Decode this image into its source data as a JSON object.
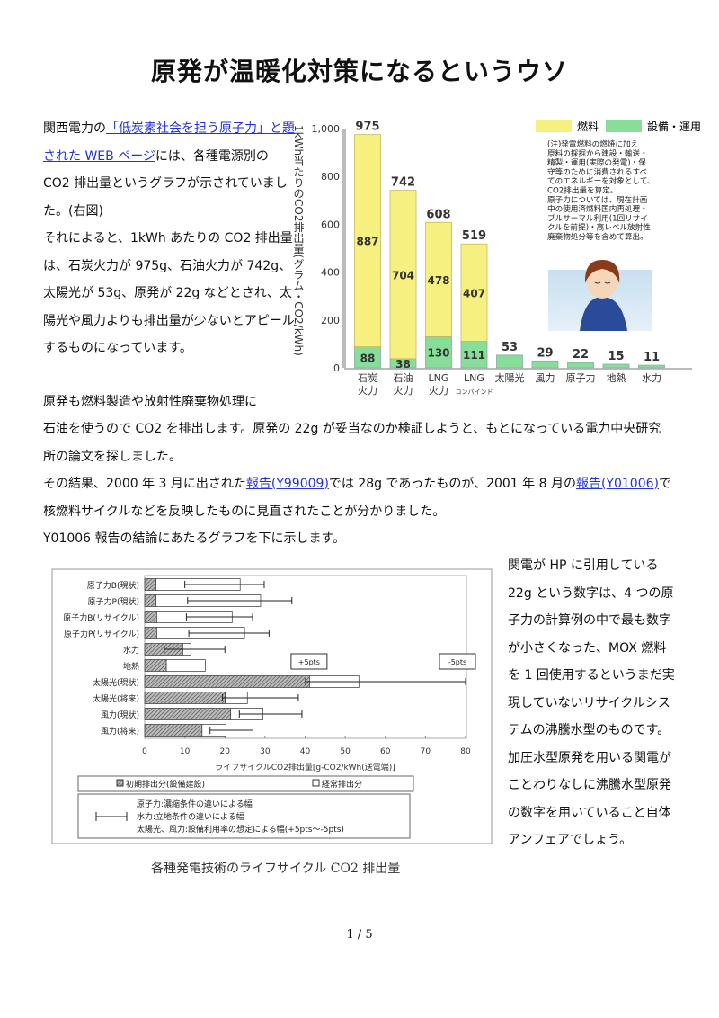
{
  "title": "原発が温暖化対策になるというウソ",
  "p1": {
    "pre": "関西電力の",
    "link": "「低炭素社会を担う原子力」と題された WEB ページ",
    "post": "には、各種電源別の CO2 排出量というグラフが示されていました。(右図)",
    "second": "それによると、1kWh あたりの CO2 排出量は、石炭火力が 975g、石油火力が 742g、太陽光が 53g、原発が 22g などとされ、太陽光や風力よりも排出量が少ないとアピールするものになっています。"
  },
  "p2": "原発も燃料製造や放射性廃棄物処理に",
  "p3": {
    "line1": "石油を使うので CO2 を排出します。原発の 22g が妥当なのか検証しようと、もとになっている電力中央研究所の論文を探しました。",
    "pre2": "その結果、2000 年 3 月に出された",
    "link1": "報告(Y99009)",
    "mid2": "では 28g であったものが、2001 年 8 月の",
    "link2": "報告(Y01006)",
    "post2": "で核燃料サイクルなどを反映したものに見直されたことが分かりました。",
    "line3": "Y01006 報告の結論にあたるグラフを下に示します。"
  },
  "p4": "関電が HP に引用している 22g という数字は、4 つの原子力の計算例の中で最も数字が小さくなった、MOX 燃料を 1 回使用するというまだ実現していないリサイクルシステムの沸騰水型のものです。加圧水型原発を用いる関電がことわりなしに沸騰水型原発の数字を用いていること自体アンフェアでしょう。",
  "caption": "各種発電技術のライフサイクル CO2 排出量",
  "page_number": "1 / 5",
  "chart_data": [
    {
      "type": "bar",
      "stacked": true,
      "ylabel": "1kWh当たりのCO2排出量(グラム・CO2/kWh)",
      "ylim": [
        0,
        1000
      ],
      "yticks": [
        "0",
        "200",
        "400",
        "600",
        "800",
        "1,000"
      ],
      "categories": [
        [
          "石炭",
          "火力"
        ],
        [
          "石油",
          "火力"
        ],
        [
          "LNG",
          "火力"
        ],
        [
          "LNG",
          "コンバインド"
        ],
        [
          "太陽光"
        ],
        [
          "風力"
        ],
        [
          "原子力"
        ],
        [
          "地熱"
        ],
        [
          "水力"
        ]
      ],
      "totals": [
        975,
        742,
        608,
        519,
        53,
        29,
        22,
        15,
        11
      ],
      "series": [
        {
          "name": "設備・運用",
          "color": "#88dd99",
          "values": [
            88,
            38,
            130,
            111,
            53,
            29,
            22,
            15,
            11
          ]
        },
        {
          "name": "燃料",
          "color": "#f5f080",
          "values": [
            887,
            704,
            478,
            407,
            0,
            0,
            0,
            0,
            0
          ]
        }
      ],
      "note": [
        "(注)発電燃料の燃焼に加え",
        "原料の採掘から建設・輸送・",
        "精製・運用(実際の発電)・保",
        "守等のために消費されるすべ",
        "てのエネルギーを対象として、",
        "CO2排出量を算定。",
        "原子力については、現在計画",
        "中の使用済燃料国内再処理・",
        "プルサーマル利用(1回リサイ",
        "クルを前提)・高レベル放射性",
        "廃棄物処分等を含めて算出。"
      ]
    },
    {
      "type": "bar",
      "orientation": "horizontal",
      "stacked": true,
      "xlabel": "ライフサイクルCO2排出量[g-CO2/kWh(送電端)]",
      "xlim": [
        0,
        80
      ],
      "xticks": [
        "0",
        "10",
        "20",
        "30",
        "40",
        "50",
        "60",
        "70",
        "80"
      ],
      "categories": [
        "原子力B(現状)",
        "原子力P(現状)",
        "原子力B(リサイクル)",
        "原子力P(リサイクル)",
        "水力",
        "地熱",
        "太陽光(現状)",
        "太陽光(将来)",
        "風力(現状)",
        "風力(将来)"
      ],
      "series": [
        {
          "name": "初期排出分(設備建設)",
          "pattern": "hatched",
          "values": [
            2.8,
            2.8,
            3.0,
            3.0,
            9.5,
            5.4,
            41.1,
            20.1,
            21.4,
            14.3
          ]
        },
        {
          "name": "経常排出分",
          "pattern": "white",
          "values": [
            21.0,
            26.1,
            18.8,
            21.9,
            2.0,
            9.7,
            12.3,
            5.5,
            8.1,
            6.0
          ]
        }
      ],
      "error_range": [
        [
          10,
          29.8
        ],
        [
          10.7,
          36.7
        ],
        [
          10.4,
          26.9
        ],
        [
          11,
          31
        ],
        [
          4.9,
          20
        ],
        null,
        [
          40.1,
          80
        ],
        [
          19.4,
          38.3
        ],
        [
          23.6,
          39.2
        ],
        [
          16.3,
          27
        ]
      ],
      "annotations": [
        "+5pts",
        "-5pts"
      ],
      "legend_note": [
        "原子力:濃縮条件の違いによる幅",
        "水力:立地条件の違いによる幅",
        "太陽光、風力:設備利用率の想定による幅(+5pts〜-5pts)"
      ]
    }
  ]
}
